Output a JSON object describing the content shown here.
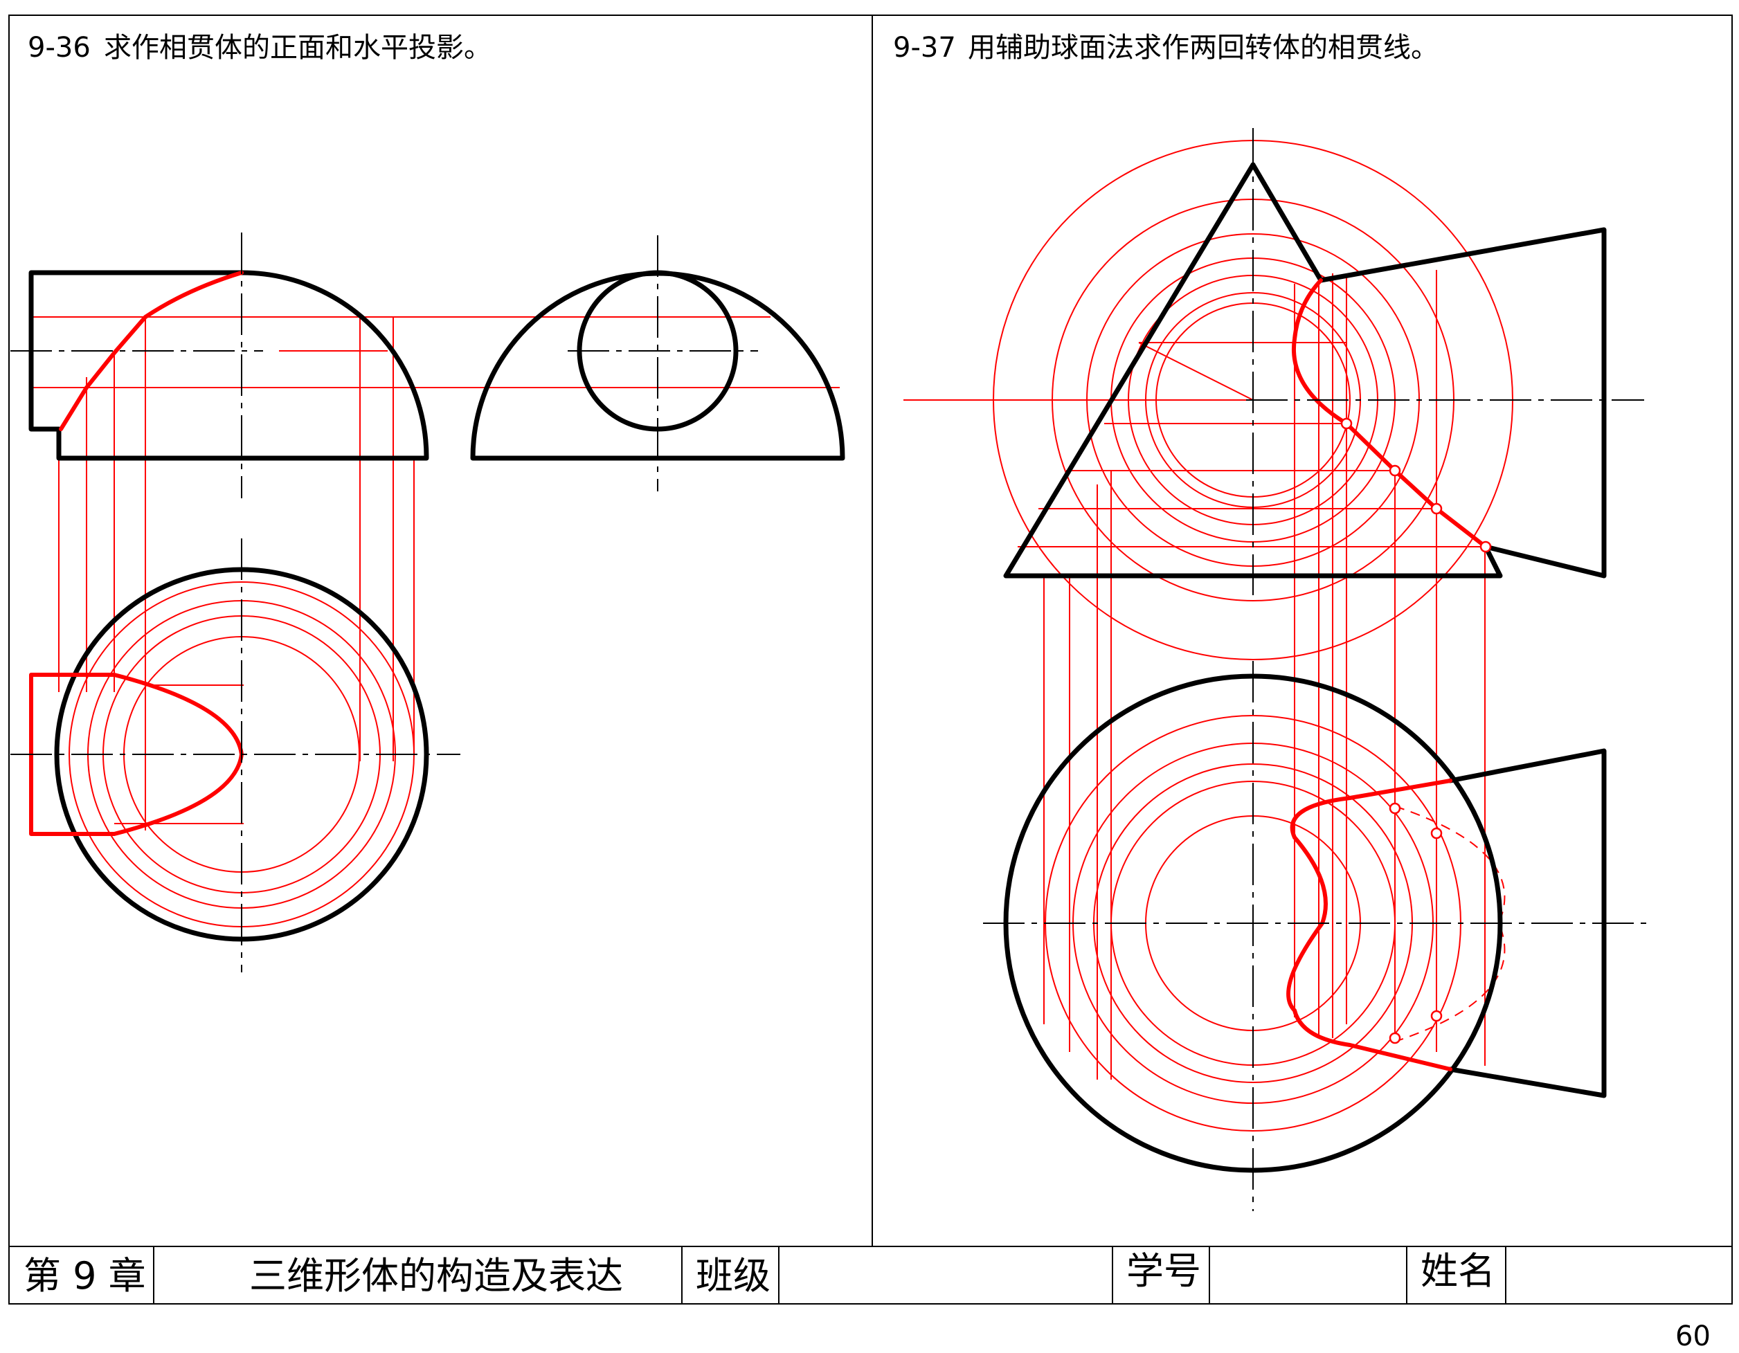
{
  "problems": [
    {
      "number": "9-36",
      "text": "求作相贯体的正面和水平投影。"
    },
    {
      "number": "9-37",
      "text": "用辅助球面法求作两回转体的相贯线。"
    }
  ],
  "title_block": {
    "chapter": "第 9 章",
    "chapter_title": "三维形体的构造及表达",
    "class_label": "班级",
    "class_value": "",
    "student_no_label": "学号",
    "student_no_value": "",
    "name_label": "姓名",
    "name_value": ""
  },
  "page_number": "60",
  "colors": {
    "outline": "#000000",
    "construction": "#ff0000"
  }
}
